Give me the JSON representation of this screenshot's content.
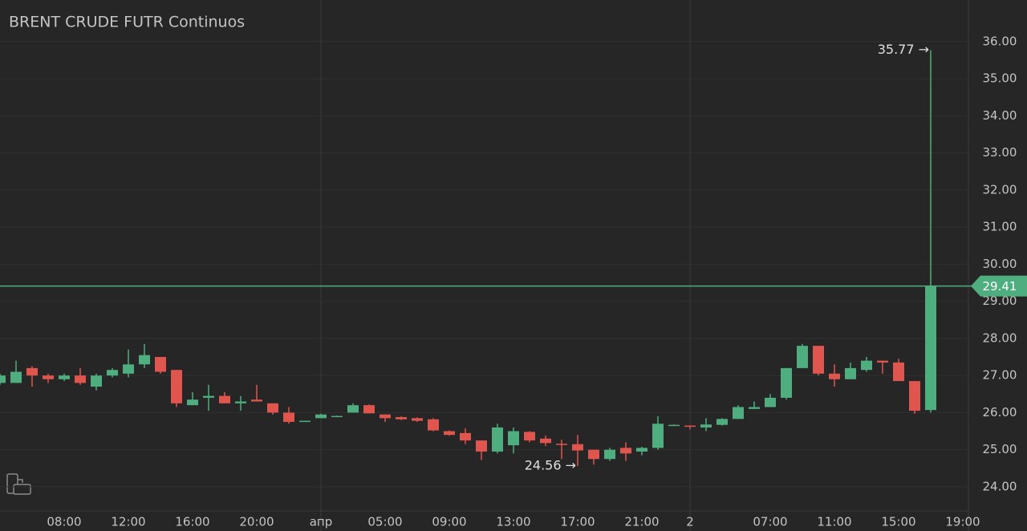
{
  "chart_data": {
    "type": "candlestick",
    "title": "BRENT CRUDE FUTR Continuos",
    "categories": [
      null,
      null,
      null,
      null,
      "08:00",
      null,
      null,
      null,
      "12:00",
      null,
      null,
      null,
      "16:00",
      null,
      null,
      null,
      "20:00",
      null,
      null,
      null,
      "апр",
      null,
      null,
      null,
      "05:00",
      null,
      null,
      null,
      "09:00",
      null,
      null,
      null,
      "13:00",
      null,
      null,
      null,
      "17:00",
      null,
      null,
      null,
      "21:00",
      null,
      null,
      "2",
      null,
      null,
      null,
      null,
      "07:00",
      null,
      null,
      null,
      "11:00",
      null,
      null,
      null,
      "15:00",
      null,
      null,
      null,
      "19:00"
    ],
    "open": [
      26.8,
      26.8,
      27.2,
      27.0,
      26.9,
      27.0,
      26.7,
      27.0,
      27.05,
      27.3,
      27.5,
      27.15,
      26.2,
      26.4,
      26.45,
      26.25,
      26.35,
      26.25,
      26.0,
      25.77,
      25.85,
      25.9,
      26.0,
      26.2,
      25.95,
      25.88,
      25.85,
      25.82,
      25.5,
      25.45,
      25.25,
      24.95,
      25.12,
      25.48,
      25.3,
      25.16,
      25.15,
      25.0,
      24.75,
      25.05,
      24.95,
      25.05,
      25.67,
      25.65,
      25.6,
      25.67,
      25.83,
      26.1,
      26.15,
      26.4,
      27.2,
      27.8,
      27.05,
      26.9,
      27.15,
      27.4,
      27.35,
      26.85,
      26.07,
      null,
      null
    ],
    "high": [
      27.05,
      27.4,
      27.25,
      27.05,
      27.05,
      27.2,
      27.05,
      27.2,
      27.7,
      27.85,
      27.5,
      27.15,
      26.55,
      26.75,
      26.55,
      26.45,
      26.75,
      26.25,
      26.15,
      25.78,
      25.97,
      25.92,
      26.25,
      26.22,
      25.95,
      25.9,
      25.87,
      25.85,
      25.52,
      25.58,
      25.25,
      25.7,
      25.6,
      25.5,
      25.38,
      25.27,
      25.4,
      25.0,
      25.05,
      25.2,
      25.08,
      25.9,
      25.68,
      25.65,
      25.85,
      25.85,
      26.2,
      26.3,
      26.5,
      27.2,
      27.85,
      27.8,
      27.3,
      27.35,
      27.5,
      27.4,
      27.45,
      26.85,
      35.77,
      null,
      null
    ],
    "low": [
      26.75,
      26.8,
      26.7,
      26.8,
      26.85,
      26.75,
      26.6,
      26.95,
      26.95,
      27.2,
      27.05,
      26.15,
      26.2,
      26.05,
      26.25,
      26.05,
      26.3,
      25.95,
      25.7,
      25.77,
      25.85,
      25.89,
      26.0,
      25.98,
      25.75,
      25.8,
      25.75,
      25.5,
      25.38,
      25.15,
      24.72,
      24.9,
      24.9,
      25.2,
      25.1,
      24.75,
      24.56,
      24.6,
      24.7,
      24.7,
      24.85,
      25.0,
      25.66,
      25.55,
      25.5,
      25.65,
      25.83,
      26.1,
      26.15,
      26.35,
      27.2,
      27.0,
      26.7,
      26.9,
      27.1,
      27.05,
      26.85,
      25.97,
      26.0,
      null,
      null
    ],
    "close": [
      27.0,
      27.1,
      27.0,
      26.9,
      27.0,
      26.8,
      27.0,
      27.15,
      27.3,
      27.55,
      27.1,
      26.25,
      26.35,
      26.45,
      26.25,
      26.3,
      26.3,
      26.0,
      25.75,
      25.78,
      25.95,
      25.91,
      26.2,
      25.98,
      25.85,
      25.82,
      25.78,
      25.52,
      25.4,
      25.25,
      24.95,
      25.6,
      25.5,
      25.25,
      25.18,
      25.15,
      24.98,
      24.75,
      25.0,
      24.9,
      25.05,
      25.7,
      25.67,
      25.62,
      25.68,
      25.83,
      26.15,
      26.15,
      26.4,
      27.2,
      27.8,
      27.05,
      26.9,
      27.2,
      27.4,
      27.35,
      26.85,
      26.05,
      29.41,
      null,
      null
    ],
    "up_color": "#4fae7f",
    "down_color": "#e0564f",
    "ylim": [
      23.35,
      37.12
    ],
    "yticks": [
      {
        "value": 24,
        "label": "24.00"
      },
      {
        "value": 25,
        "label": "25.00"
      },
      {
        "value": 26,
        "label": "26.00"
      },
      {
        "value": 27,
        "label": "27.00"
      },
      {
        "value": 28,
        "label": "28.00"
      },
      {
        "value": 29,
        "label": "29.00"
      },
      {
        "value": 30,
        "label": "30.00"
      },
      {
        "value": 31,
        "label": "31.00"
      },
      {
        "value": 32,
        "label": "32.00"
      },
      {
        "value": 33,
        "label": "33.00"
      },
      {
        "value": 34,
        "label": "34.00"
      },
      {
        "value": 35,
        "label": "35.00"
      },
      {
        "value": 36,
        "label": "36.00"
      }
    ],
    "grid": true,
    "last_price": 29.41,
    "high_marker": {
      "value": 35.77,
      "label": "35.77 →"
    },
    "low_marker": {
      "value": 24.56,
      "label": "24.56 →"
    }
  }
}
